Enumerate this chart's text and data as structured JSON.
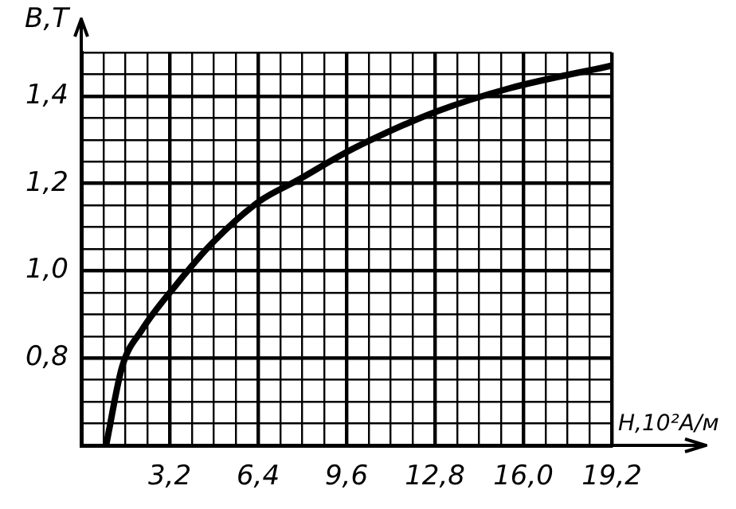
{
  "chart_data": {
    "type": "line",
    "xlabel": "H,10²А/м",
    "ylabel": "B,T",
    "x": [
      0.9,
      1.48,
      2.2,
      3.4,
      4.75,
      6.47,
      7.82,
      9.55,
      10.9,
      12.82,
      15.5,
      19.2
    ],
    "series": [
      {
        "color": "#000000",
        "values": [
          0.6,
          0.78,
          0.865,
          0.965,
          1.064,
          1.16,
          1.207,
          1.27,
          1.312,
          1.364,
          1.418,
          1.47
        ]
      }
    ],
    "xlim": [
      0,
      19.2
    ],
    "ylim": [
      0.6,
      1.5
    ],
    "xticks": [
      {
        "value": 0,
        "label": null
      },
      {
        "value": 0.8,
        "label": null
      },
      {
        "value": 1.6,
        "label": null
      },
      {
        "value": 2.4,
        "label": null
      },
      {
        "value": 3.2,
        "label": "3,2"
      },
      {
        "value": 4.0,
        "label": null
      },
      {
        "value": 4.8,
        "label": null
      },
      {
        "value": 5.6,
        "label": null
      },
      {
        "value": 6.4,
        "label": "6,4"
      },
      {
        "value": 7.2,
        "label": null
      },
      {
        "value": 8.0,
        "label": null
      },
      {
        "value": 8.8,
        "label": null
      },
      {
        "value": 9.6,
        "label": "9,6"
      },
      {
        "value": 10.4,
        "label": null
      },
      {
        "value": 11.2,
        "label": null
      },
      {
        "value": 12.0,
        "label": null
      },
      {
        "value": 12.8,
        "label": "12,8"
      },
      {
        "value": 13.6,
        "label": null
      },
      {
        "value": 14.4,
        "label": null
      },
      {
        "value": 15.2,
        "label": null
      },
      {
        "value": 16.0,
        "label": "16,0"
      },
      {
        "value": 16.8,
        "label": null
      },
      {
        "value": 17.6,
        "label": null
      },
      {
        "value": 18.4,
        "label": null
      },
      {
        "value": 19.2,
        "label": "19,2"
      }
    ],
    "yticks": [
      {
        "value": 0.6,
        "label": null
      },
      {
        "value": 0.65,
        "label": null
      },
      {
        "value": 0.7,
        "label": null
      },
      {
        "value": 0.75,
        "label": null
      },
      {
        "value": 0.8,
        "label": "0,8"
      },
      {
        "value": 0.85,
        "label": null
      },
      {
        "value": 0.9,
        "label": null
      },
      {
        "value": 0.95,
        "label": null
      },
      {
        "value": 1.0,
        "label": "1,0"
      },
      {
        "value": 1.05,
        "label": null
      },
      {
        "value": 1.1,
        "label": null
      },
      {
        "value": 1.15,
        "label": null
      },
      {
        "value": 1.2,
        "label": "1,2"
      },
      {
        "value": 1.25,
        "label": null
      },
      {
        "value": 1.3,
        "label": null
      },
      {
        "value": 1.35,
        "label": null
      },
      {
        "value": 1.4,
        "label": "1,4"
      },
      {
        "value": 1.45,
        "label": null
      },
      {
        "value": 1.5,
        "label": null
      }
    ],
    "grid": true,
    "legend": false,
    "marker": "none",
    "line_style": "solid"
  }
}
